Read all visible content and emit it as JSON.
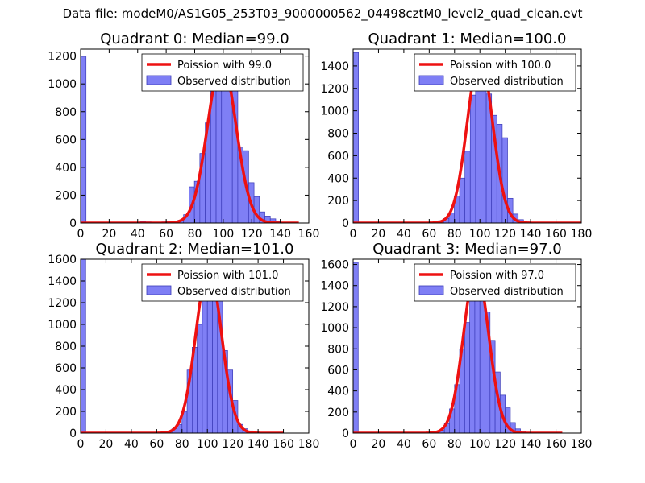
{
  "suptitle": "Data file: modeM0/AS1G05_253T03_9000000562_04498cztM0_level2_quad_clean.evt",
  "colors": {
    "bar_fill": "#7f7ff5",
    "bar_edge": "#3b3bb8",
    "fit_line": "#ee1111"
  },
  "chart_data": [
    {
      "type": "bar",
      "title": "Quadrant 0: Median=99.0",
      "xlim": [
        0,
        160
      ],
      "ylim": [
        0,
        1250
      ],
      "xticks": [
        0,
        20,
        40,
        60,
        80,
        100,
        120,
        140,
        160
      ],
      "yticks": [
        0,
        200,
        400,
        600,
        800,
        1000,
        1200
      ],
      "bin_width": 3.8,
      "bins_x": [
        0,
        3.8,
        7.6,
        11.4,
        15.2,
        19,
        22.8,
        26.6,
        30.4,
        34.2,
        38,
        41.8,
        45.6,
        49.4,
        53.2,
        57,
        60.8,
        64.6,
        68.4,
        72.2,
        76,
        79.8,
        83.6,
        87.4,
        91.2,
        95,
        98.8,
        102.6,
        106.4,
        110.2,
        114,
        117.8,
        121.6,
        125.4,
        129.2,
        133,
        136.8,
        140.6,
        144.4,
        148.2
      ],
      "counts": [
        1200,
        0,
        0,
        5,
        5,
        3,
        2,
        5,
        2,
        2,
        0,
        10,
        8,
        6,
        5,
        8,
        12,
        15,
        20,
        60,
        260,
        300,
        500,
        720,
        980,
        1060,
        1100,
        1160,
        1100,
        540,
        520,
        290,
        190,
        80,
        50,
        30,
        10,
        5,
        3,
        0
      ],
      "poisson_mean": 99.0,
      "fit_peak": 1160,
      "fit_xrange": [
        0,
        153
      ],
      "legend": [
        "Poission with 99.0",
        "Observed distribution"
      ]
    },
    {
      "type": "bar",
      "title": "Quadrant 1: Median=100.0",
      "xlim": [
        0,
        180
      ],
      "ylim": [
        0,
        1550
      ],
      "xticks": [
        0,
        20,
        40,
        60,
        80,
        100,
        120,
        140,
        160,
        180
      ],
      "yticks": [
        0,
        200,
        400,
        600,
        800,
        1000,
        1200,
        1400
      ],
      "bin_width": 4.2,
      "bins_x": [
        0,
        4.2,
        8.4,
        12.6,
        16.8,
        21,
        25.2,
        29.4,
        33.6,
        37.8,
        42,
        46.2,
        50.4,
        54.6,
        58.8,
        63,
        67.2,
        71.4,
        75.6,
        79.8,
        84,
        88.2,
        92.4,
        96.6,
        100.8,
        105,
        109.2,
        113.4,
        117.6,
        121.8,
        126,
        130.2,
        134.4,
        138.6,
        142.8,
        147,
        151.2,
        155.4,
        159.6,
        163.8,
        168,
        172.2
      ],
      "counts": [
        1520,
        0,
        0,
        0,
        0,
        0,
        0,
        0,
        0,
        0,
        0,
        0,
        0,
        0,
        0,
        0,
        20,
        40,
        90,
        240,
        400,
        640,
        1140,
        1410,
        1350,
        1150,
        960,
        880,
        760,
        220,
        80,
        30,
        10,
        0,
        0,
        0,
        0,
        0,
        0,
        0,
        0,
        0
      ],
      "poisson_mean": 100.0,
      "fit_peak": 1480,
      "fit_xrange": [
        0,
        180
      ],
      "legend": [
        "Poission with 100.0",
        "Observed distribution"
      ]
    },
    {
      "type": "bar",
      "title": "Quadrant 2: Median=101.0",
      "xlim": [
        0,
        180
      ],
      "ylim": [
        0,
        1600
      ],
      "xticks": [
        0,
        20,
        40,
        60,
        80,
        100,
        120,
        140,
        160,
        180
      ],
      "yticks": [
        0,
        200,
        400,
        600,
        800,
        1000,
        1200,
        1400,
        1600
      ],
      "bin_width": 4.0,
      "bins_x": [
        0,
        4,
        8,
        12,
        16,
        20,
        24,
        28,
        32,
        36,
        40,
        44,
        48,
        52,
        56,
        60,
        64,
        68,
        72,
        76,
        80,
        84,
        88,
        92,
        96,
        100,
        104,
        108,
        112,
        116,
        120,
        124,
        128,
        132,
        136,
        140,
        144,
        148,
        152,
        156
      ],
      "counts": [
        1600,
        0,
        0,
        0,
        0,
        0,
        0,
        0,
        0,
        0,
        0,
        0,
        0,
        0,
        0,
        0,
        0,
        10,
        40,
        80,
        200,
        580,
        790,
        1000,
        1400,
        1500,
        1350,
        1290,
        760,
        580,
        300,
        80,
        40,
        20,
        10,
        5,
        0,
        0,
        0,
        0
      ],
      "poisson_mean": 101.0,
      "fit_peak": 1520,
      "fit_xrange": [
        0,
        160
      ],
      "legend": [
        "Poission with 101.0",
        "Observed distribution"
      ]
    },
    {
      "type": "bar",
      "title": "Quadrant 3: Median=97.0",
      "xlim": [
        0,
        180
      ],
      "ylim": [
        0,
        1650
      ],
      "xticks": [
        0,
        20,
        40,
        60,
        80,
        100,
        120,
        140,
        160,
        180
      ],
      "yticks": [
        0,
        200,
        400,
        600,
        800,
        1000,
        1200,
        1400,
        1600
      ],
      "bin_width": 4.0,
      "bins_x": [
        0,
        4,
        8,
        12,
        16,
        20,
        24,
        28,
        32,
        36,
        40,
        44,
        48,
        52,
        56,
        60,
        64,
        68,
        72,
        76,
        80,
        84,
        88,
        92,
        96,
        100,
        104,
        108,
        112,
        116,
        120,
        124,
        128,
        132,
        136,
        140,
        144,
        148,
        152,
        156
      ],
      "counts": [
        1620,
        0,
        0,
        0,
        0,
        0,
        0,
        0,
        0,
        0,
        0,
        0,
        0,
        0,
        0,
        0,
        10,
        30,
        90,
        230,
        460,
        800,
        1050,
        1410,
        1500,
        1380,
        1150,
        880,
        580,
        360,
        240,
        100,
        40,
        20,
        5,
        0,
        0,
        0,
        0,
        0
      ],
      "poisson_mean": 97.0,
      "fit_peak": 1560,
      "fit_xrange": [
        0,
        165
      ],
      "legend": [
        "Poission with 97.0",
        "Observed distribution"
      ]
    }
  ]
}
